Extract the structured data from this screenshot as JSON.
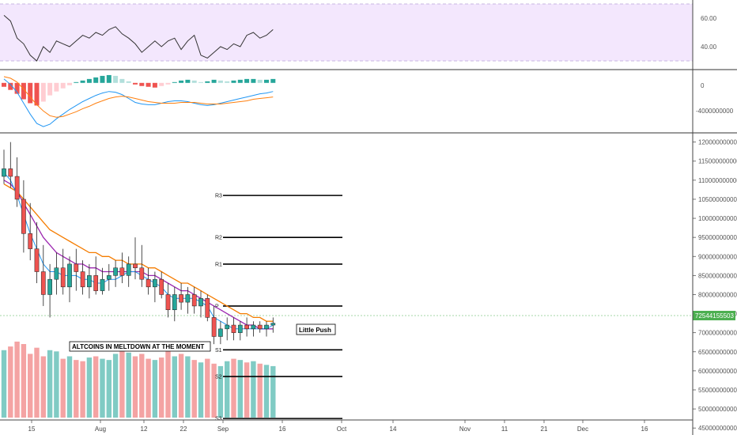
{
  "colors": {
    "up": "#26a69a",
    "down": "#ef5350",
    "vol_up": "#80cbc4",
    "vol_down": "#f4a3a3",
    "rsi_band": "#f3e7fd",
    "rsi_line": "#333333",
    "macd_line": "#2196f3",
    "signal_line": "#ff7f0e",
    "ma_fast": "#2196f3",
    "ma_mid": "#9c27b0",
    "ma_slow": "#f57c00",
    "last_price": "#4caf50"
  },
  "chart_data": {
    "type": "candlestick",
    "symbol_note": "",
    "x_ticks": [
      "15",
      "Aug",
      "12",
      "22",
      "Sep",
      "16",
      "Oct",
      "14",
      "Nov",
      "11",
      "21",
      "Dec",
      "16"
    ],
    "price_axis": {
      "ticks": [
        "120000000000",
        "115000000000",
        "110000000000",
        "105000000000",
        "100000000000",
        "95000000000",
        "90000000000",
        "85000000000",
        "80000000000",
        "75000000000",
        "70000000000",
        "65000000000",
        "60000000000",
        "55000000000",
        "50000000000",
        "45000000000"
      ],
      "min": 44000000000,
      "max": 122000000000,
      "last_price_label": "72544155503",
      "last_price": 72544155503
    },
    "rsi_axis": {
      "ticks": [
        "60.00",
        "40.00"
      ],
      "band_low": 30,
      "band_high": 70,
      "min": 20,
      "max": 80
    },
    "macd_axis": {
      "ticks": [
        "0",
        "-4000000000"
      ],
      "min": -6200000000,
      "max": 1500000000
    },
    "pivots": [
      {
        "label": "R3",
        "value": 106000000000
      },
      {
        "label": "R2",
        "value": 95000000000
      },
      {
        "label": "R1",
        "value": 88000000000
      },
      {
        "label": "P",
        "value": 77000000000
      },
      {
        "label": "S1",
        "value": 65500000000
      },
      {
        "label": "S2",
        "value": 58500000000
      },
      {
        "label": "S3",
        "value": 47500000000
      }
    ],
    "annotations": {
      "left": "ALTCOINS IN MELTDOWN AT THE MOMENT",
      "right": "Little Push"
    },
    "ohlc": [
      [
        111,
        118,
        109,
        113
      ],
      [
        113,
        120,
        108,
        111
      ],
      [
        111,
        116,
        103,
        105
      ],
      [
        105,
        110,
        91,
        96
      ],
      [
        96,
        104,
        89,
        92
      ],
      [
        92,
        99,
        83,
        86
      ],
      [
        86,
        93,
        77,
        80
      ],
      [
        80,
        88,
        74,
        84
      ],
      [
        84,
        91,
        80,
        87
      ],
      [
        87,
        92,
        80,
        82
      ],
      [
        82,
        90,
        78,
        88
      ],
      [
        88,
        92,
        81,
        86
      ],
      [
        86,
        89,
        80,
        82
      ],
      [
        82,
        88,
        79,
        85
      ],
      [
        85,
        90,
        80,
        81
      ],
      [
        81,
        87,
        80,
        84
      ],
      [
        84,
        88,
        81,
        85
      ],
      [
        85,
        89,
        82,
        87
      ],
      [
        87,
        91,
        83,
        85
      ],
      [
        85,
        90,
        82,
        88
      ],
      [
        88,
        95,
        84,
        87
      ],
      [
        87,
        93,
        82,
        84
      ],
      [
        84,
        87,
        80,
        82
      ],
      [
        82,
        86,
        78,
        84
      ],
      [
        84,
        86,
        79,
        80
      ],
      [
        80,
        83,
        74,
        76
      ],
      [
        76,
        82,
        73,
        80
      ],
      [
        80,
        83,
        76,
        78
      ],
      [
        78,
        82,
        75,
        80
      ],
      [
        80,
        82,
        75,
        77
      ],
      [
        77,
        81,
        74,
        79
      ],
      [
        79,
        80,
        73,
        74
      ],
      [
        74,
        77,
        67,
        69
      ],
      [
        69,
        73,
        67,
        71
      ],
      [
        71,
        74,
        68,
        72
      ],
      [
        72,
        74,
        68,
        70
      ],
      [
        70,
        73,
        68,
        72
      ],
      [
        72,
        74,
        69,
        71
      ],
      [
        71,
        73,
        69,
        72
      ],
      [
        72,
        73,
        70,
        71
      ],
      [
        71,
        73,
        69,
        72
      ],
      [
        72,
        74,
        70,
        72.5
      ]
    ],
    "ma_fast": [
      112,
      110,
      106,
      101,
      96,
      92,
      88,
      86,
      86,
      85,
      85,
      85,
      84,
      84,
      83,
      83,
      84,
      84,
      85,
      86,
      86,
      85,
      84,
      83,
      82,
      80,
      79,
      79,
      79,
      79,
      78,
      77,
      74,
      73,
      72,
      71,
      71,
      71,
      71,
      71,
      71,
      72
    ],
    "ma_mid": [
      110,
      109,
      107,
      104,
      101,
      98,
      95,
      93,
      91,
      90,
      89,
      88,
      88,
      87,
      87,
      86,
      86,
      86,
      86,
      86,
      86,
      86,
      85,
      85,
      84,
      83,
      82,
      81,
      81,
      80,
      79,
      78,
      77,
      76,
      75,
      74,
      73,
      72,
      72,
      71,
      71,
      71
    ],
    "ma_slow": [
      109,
      108,
      107,
      105,
      103,
      101,
      99,
      97,
      96,
      95,
      94,
      93,
      92,
      91,
      91,
      90,
      90,
      89,
      89,
      88,
      88,
      88,
      87,
      87,
      86,
      85,
      84,
      83,
      83,
      82,
      81,
      80,
      79,
      78,
      77,
      76,
      75,
      75,
      74,
      74,
      73,
      73
    ],
    "volume": [
      55,
      58,
      62,
      60,
      52,
      57,
      50,
      55,
      54,
      48,
      50,
      47,
      46,
      49,
      50,
      48,
      47,
      52,
      55,
      53,
      50,
      52,
      48,
      47,
      49,
      55,
      50,
      52,
      50,
      47,
      45,
      48,
      44,
      42,
      46,
      48,
      47,
      45,
      46,
      44,
      43,
      42
    ],
    "rsi": [
      62,
      58,
      46,
      42,
      34,
      30,
      40,
      36,
      44,
      42,
      40,
      44,
      48,
      46,
      50,
      48,
      52,
      54,
      49,
      46,
      42,
      36,
      40,
      44,
      40,
      44,
      46,
      38,
      44,
      48,
      34,
      32,
      36,
      40,
      38,
      42,
      40,
      48,
      50,
      46,
      48,
      52
    ],
    "macd_hist": [
      -0.5,
      -0.9,
      -1.4,
      -2.1,
      -2.6,
      -2.9,
      -2.4,
      -1.6,
      -1.1,
      -0.7,
      -0.3,
      0.1,
      0.3,
      0.5,
      0.7,
      0.9,
      1.0,
      0.9,
      0.5,
      0.2,
      -0.2,
      -0.4,
      -0.5,
      -0.6,
      -0.4,
      -0.2,
      0.1,
      0.3,
      0.4,
      0.3,
      0.1,
      0.2,
      0.4,
      0.3,
      0.2,
      0.3,
      0.4,
      0.5,
      0.5,
      0.4,
      0.4,
      0.5
    ],
    "macd_line": [
      0.5,
      -0.2,
      -1.2,
      -2.6,
      -4.0,
      -5.2,
      -5.6,
      -5.3,
      -4.6,
      -4.0,
      -3.4,
      -2.9,
      -2.4,
      -2.0,
      -1.6,
      -1.3,
      -1.1,
      -1.2,
      -1.5,
      -2.0,
      -2.5,
      -2.7,
      -2.8,
      -2.8,
      -2.6,
      -2.4,
      -2.3,
      -2.3,
      -2.4,
      -2.6,
      -2.8,
      -2.9,
      -2.8,
      -2.6,
      -2.4,
      -2.2,
      -2.0,
      -1.8,
      -1.6,
      -1.4,
      -1.3,
      -1.1
    ],
    "signal_line": [
      0.8,
      0.6,
      0.1,
      -0.8,
      -1.8,
      -2.8,
      -3.6,
      -4.2,
      -4.4,
      -4.3,
      -4.0,
      -3.7,
      -3.3,
      -3.0,
      -2.6,
      -2.3,
      -2.0,
      -1.8,
      -1.7,
      -1.8,
      -2.0,
      -2.2,
      -2.4,
      -2.5,
      -2.6,
      -2.6,
      -2.6,
      -2.5,
      -2.5,
      -2.5,
      -2.6,
      -2.7,
      -2.7,
      -2.7,
      -2.6,
      -2.5,
      -2.4,
      -2.3,
      -2.1,
      -2.0,
      -1.9,
      -1.8
    ]
  }
}
